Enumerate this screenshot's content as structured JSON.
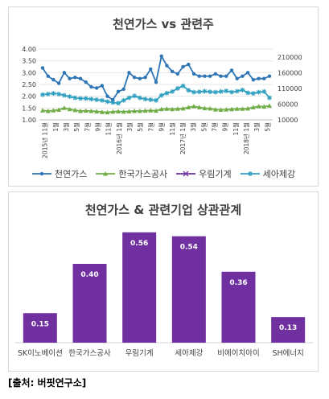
{
  "source": "[출처: 버핏연구소]",
  "chart_data": [
    {
      "type": "line",
      "title": "천연가스 vs 관련주",
      "x_ticks": [
        "2015년 11월",
        "1월",
        "3월",
        "5월",
        "7월",
        "9월",
        "11월",
        "2016년 1월",
        "3월",
        "5월",
        "7월",
        "9월",
        "11월",
        "2017년 1월",
        "3월",
        "5월",
        "7월",
        "9월",
        "11월",
        "2018년 1월",
        "3월",
        "5월"
      ],
      "y_left": {
        "ticks": [
          "1.00",
          "1.50",
          "2.00",
          "2.50",
          "3.00",
          "3.50",
          "4.00"
        ],
        "lim": [
          1.0,
          4.0
        ]
      },
      "y_right": {
        "ticks": [
          "10000",
          "60000",
          "110000",
          "160000",
          "210000"
        ],
        "lim": [
          10000,
          235000
        ]
      },
      "series": [
        {
          "name": "천연가스",
          "axis": "left",
          "color": "#2e75b6",
          "marker": "circle",
          "values": [
            3.2,
            2.85,
            2.7,
            2.55,
            3.0,
            2.75,
            2.8,
            2.75,
            2.6,
            2.4,
            2.35,
            2.45,
            2.0,
            1.85,
            2.2,
            2.3,
            3.0,
            2.8,
            2.75,
            2.8,
            3.15,
            2.6,
            3.7,
            3.3,
            3.05,
            2.95,
            3.25,
            3.35,
            2.95,
            2.85,
            2.85,
            2.85,
            2.95,
            2.85,
            2.85,
            3.1,
            2.75,
            2.85,
            3.0,
            2.7,
            2.75,
            2.75,
            2.85
          ]
        },
        {
          "name": "한국가스공사",
          "axis": "right",
          "color": "#70ad47",
          "marker": "triangle",
          "values": [
            40000,
            38000,
            40000,
            42000,
            48000,
            44000,
            41000,
            38000,
            39000,
            38000,
            37000,
            35000,
            34000,
            36000,
            37000,
            36000,
            37000,
            38000,
            38000,
            39000,
            40000,
            39000,
            44000,
            45000,
            44000,
            45000,
            46000,
            50000,
            53000,
            50000,
            47000,
            46000,
            43000,
            42000,
            43000,
            44000,
            45000,
            45000,
            46000,
            50000,
            53000,
            52000,
            55000
          ]
        },
        {
          "name": "우림기계",
          "axis": "right",
          "color": "#7030a0",
          "marker": "x",
          "values": []
        },
        {
          "name": "세아제강",
          "axis": "right",
          "color": "#31a0c0",
          "marker": "asterisk",
          "values": [
            90000,
            92000,
            94000,
            92000,
            88000,
            84000,
            80000,
            78000,
            78000,
            76000,
            74000,
            72000,
            68000,
            65000,
            63000,
            72000,
            80000,
            86000,
            80000,
            76000,
            74000,
            72000,
            88000,
            95000,
            100000,
            110000,
            118000,
            104000,
            98000,
            99000,
            101000,
            99000,
            98000,
            100000,
            102000,
            98000,
            101000,
            105000,
            96000,
            94000,
            98000,
            100000,
            80000
          ]
        }
      ]
    },
    {
      "type": "bar",
      "title": "천연가스 & 관련기업 상관관계",
      "color": "#7030a0",
      "categories": [
        "SK이노베이션",
        "한국가스공사",
        "우림기계",
        "세아제강",
        "비에이치아이",
        "SH에너지"
      ],
      "values": [
        0.15,
        0.4,
        0.56,
        0.54,
        0.36,
        0.13
      ],
      "labels": [
        "0.15",
        "0.40",
        "0.56",
        "0.54",
        "0.36",
        "0.13"
      ]
    }
  ]
}
